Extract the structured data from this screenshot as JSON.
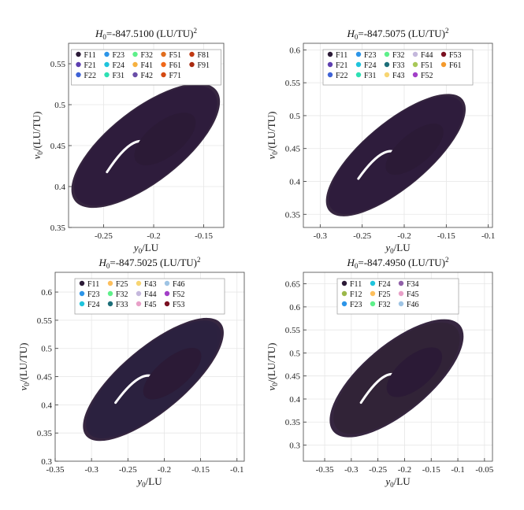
{
  "figure": {
    "xlabel_sym": "y",
    "xlabel_unit": "/LU",
    "ylabel_sym": "v",
    "ylabel_unit": "/(LU/TU)",
    "sub": "0",
    "title_prefix": "H",
    "title_unit": "(LU/TU)",
    "title_exp": "2"
  },
  "chart_data": [
    {
      "type": "scatter",
      "title_value": "=-847.5100",
      "title": "H0=-847.5100 (LU/TU)^2",
      "xlabel": "y0/LU",
      "ylabel": "v0/(LU/TU)",
      "xlim": [
        -0.285,
        -0.13
      ],
      "ylim": [
        0.35,
        0.575
      ],
      "xticks": [
        -0.25,
        -0.2,
        -0.15
      ],
      "yticks": [
        0.35,
        0.4,
        0.45,
        0.5,
        0.55
      ],
      "xtick_labels": [
        "-0.25",
        "-0.2",
        "-0.15"
      ],
      "ytick_labels": [
        "0.35",
        "0.4",
        "0.45",
        "0.5",
        "0.55"
      ],
      "grid": true,
      "legend": {
        "position": "top",
        "columns": 5
      },
      "families": [
        {
          "name": "F11",
          "color": "#2b1a36"
        },
        {
          "name": "F21",
          "color": "#5e3fb0"
        },
        {
          "name": "F22",
          "color": "#3f63d6"
        },
        {
          "name": "F23",
          "color": "#2c95e8"
        },
        {
          "name": "F24",
          "color": "#1fc4dc"
        },
        {
          "name": "F31",
          "color": "#2de0b4"
        },
        {
          "name": "F32",
          "color": "#5ef08a"
        },
        {
          "name": "F41",
          "color": "#f6b140"
        },
        {
          "name": "F42",
          "color": "#6a4ea8"
        },
        {
          "name": "F51",
          "color": "#e06d1e"
        },
        {
          "name": "F61",
          "color": "#f0681a"
        },
        {
          "name": "F71",
          "color": "#d44a12"
        },
        {
          "name": "F81",
          "color": "#c03912"
        },
        {
          "name": "F91",
          "color": "#a82a10"
        }
      ],
      "shape": {
        "cx": -0.208,
        "cy": 0.45,
        "ax": 0.078,
        "ay": 0.072,
        "rot": 38
      }
    },
    {
      "type": "scatter",
      "title_value": "=-847.5075",
      "title": "H0=-847.5075 (LU/TU)^2",
      "xlabel": "y0/LU",
      "ylabel": "v0/(LU/TU)",
      "xlim": [
        -0.32,
        -0.095
      ],
      "ylim": [
        0.33,
        0.61
      ],
      "xticks": [
        -0.3,
        -0.25,
        -0.2,
        -0.15,
        -0.1
      ],
      "yticks": [
        0.35,
        0.4,
        0.45,
        0.5,
        0.55,
        0.6
      ],
      "xtick_labels": [
        "-0.3",
        "-0.25",
        "-0.2",
        "-0.15",
        "-0.1"
      ],
      "ytick_labels": [
        "0.35",
        "0.4",
        "0.45",
        "0.5",
        "0.55",
        "0.6"
      ],
      "grid": true,
      "legend": {
        "position": "top",
        "columns": 5
      },
      "families": [
        {
          "name": "F11",
          "color": "#2b1a36"
        },
        {
          "name": "F21",
          "color": "#5e3fb0"
        },
        {
          "name": "F22",
          "color": "#3f63d6"
        },
        {
          "name": "F23",
          "color": "#2c95e8"
        },
        {
          "name": "F24",
          "color": "#1fc4dc"
        },
        {
          "name": "F31",
          "color": "#2de0b4"
        },
        {
          "name": "F32",
          "color": "#5ef08a"
        },
        {
          "name": "F33",
          "color": "#1c6e78"
        },
        {
          "name": "F43",
          "color": "#f7d572"
        },
        {
          "name": "F44",
          "color": "#c4b8dc"
        },
        {
          "name": "F51",
          "color": "#a8c858"
        },
        {
          "name": "F52",
          "color": "#a23fc8"
        },
        {
          "name": "F53",
          "color": "#7a1020"
        },
        {
          "name": "F61",
          "color": "#f49a2c"
        }
      ],
      "shape": {
        "cx": -0.21,
        "cy": 0.44,
        "ax": 0.09,
        "ay": 0.08,
        "rot": 40
      }
    },
    {
      "type": "scatter",
      "title_value": "=-847.5025",
      "title": "H0=-847.5025 (LU/TU)^2",
      "xlabel": "y0/LU",
      "ylabel": "v0/(LU/TU)",
      "xlim": [
        -0.35,
        -0.09
      ],
      "ylim": [
        0.3,
        0.635
      ],
      "xticks": [
        -0.35,
        -0.3,
        -0.25,
        -0.2,
        -0.15,
        -0.1
      ],
      "yticks": [
        0.3,
        0.35,
        0.4,
        0.45,
        0.5,
        0.55,
        0.6
      ],
      "xtick_labels": [
        "-0.35",
        "-0.3",
        "-0.25",
        "-0.2",
        "-0.15",
        "-0.1"
      ],
      "ytick_labels": [
        "0.3",
        "0.35",
        "0.4",
        "0.45",
        "0.5",
        "0.55",
        "0.6"
      ],
      "grid": true,
      "legend": {
        "position": "top",
        "columns": 5
      },
      "families": [
        {
          "name": "F11",
          "color": "#2b1a36"
        },
        {
          "name": "F23",
          "color": "#2c95e8"
        },
        {
          "name": "F24",
          "color": "#1fc4dc"
        },
        {
          "name": "F25",
          "color": "#fdbf5c"
        },
        {
          "name": "F32",
          "color": "#5ef08a"
        },
        {
          "name": "F33",
          "color": "#1c6e78"
        },
        {
          "name": "F43",
          "color": "#f7d572"
        },
        {
          "name": "F44",
          "color": "#c4b8dc"
        },
        {
          "name": "F45",
          "color": "#e8a0c8"
        },
        {
          "name": "F46",
          "color": "#9ec4e4"
        },
        {
          "name": "F52",
          "color": "#a23fc8"
        },
        {
          "name": "F53",
          "color": "#7a1020"
        }
      ],
      "shape": {
        "cx": -0.215,
        "cy": 0.445,
        "ax": 0.105,
        "ay": 0.092,
        "rot": 40
      }
    },
    {
      "type": "scatter",
      "title_value": "=-847.4950",
      "title": "H0=-847.4950 (LU/TU)^2",
      "xlabel": "y0/LU",
      "ylabel": "v0/(LU/TU)",
      "xlim": [
        -0.39,
        -0.035
      ],
      "ylim": [
        0.265,
        0.675
      ],
      "xticks": [
        -0.35,
        -0.3,
        -0.25,
        -0.2,
        -0.15,
        -0.1,
        -0.05
      ],
      "yticks": [
        0.3,
        0.35,
        0.4,
        0.45,
        0.5,
        0.55,
        0.6,
        0.65
      ],
      "xtick_labels": [
        "-0.35",
        "-0.3",
        "-0.25",
        "-0.2",
        "-0.15",
        "-0.1",
        "-0.05"
      ],
      "ytick_labels": [
        "0.3",
        "0.35",
        "0.4",
        "0.45",
        "0.5",
        "0.55",
        "0.6",
        "0.65"
      ],
      "grid": true,
      "legend": {
        "position": "top",
        "columns": 4
      },
      "families": [
        {
          "name": "F11",
          "color": "#2b1a36"
        },
        {
          "name": "F12",
          "color": "#9bb84a"
        },
        {
          "name": "F23",
          "color": "#2c95e8"
        },
        {
          "name": "F24",
          "color": "#1fc4dc"
        },
        {
          "name": "F25",
          "color": "#fdbf5c"
        },
        {
          "name": "F32",
          "color": "#5ef08a"
        },
        {
          "name": "F34",
          "color": "#9060a8"
        },
        {
          "name": "F45",
          "color": "#e8a0c8"
        },
        {
          "name": "F46",
          "color": "#9ec4e4"
        }
      ],
      "shape": {
        "cx": -0.215,
        "cy": 0.445,
        "ax": 0.135,
        "ay": 0.118,
        "rot": 40
      }
    }
  ]
}
